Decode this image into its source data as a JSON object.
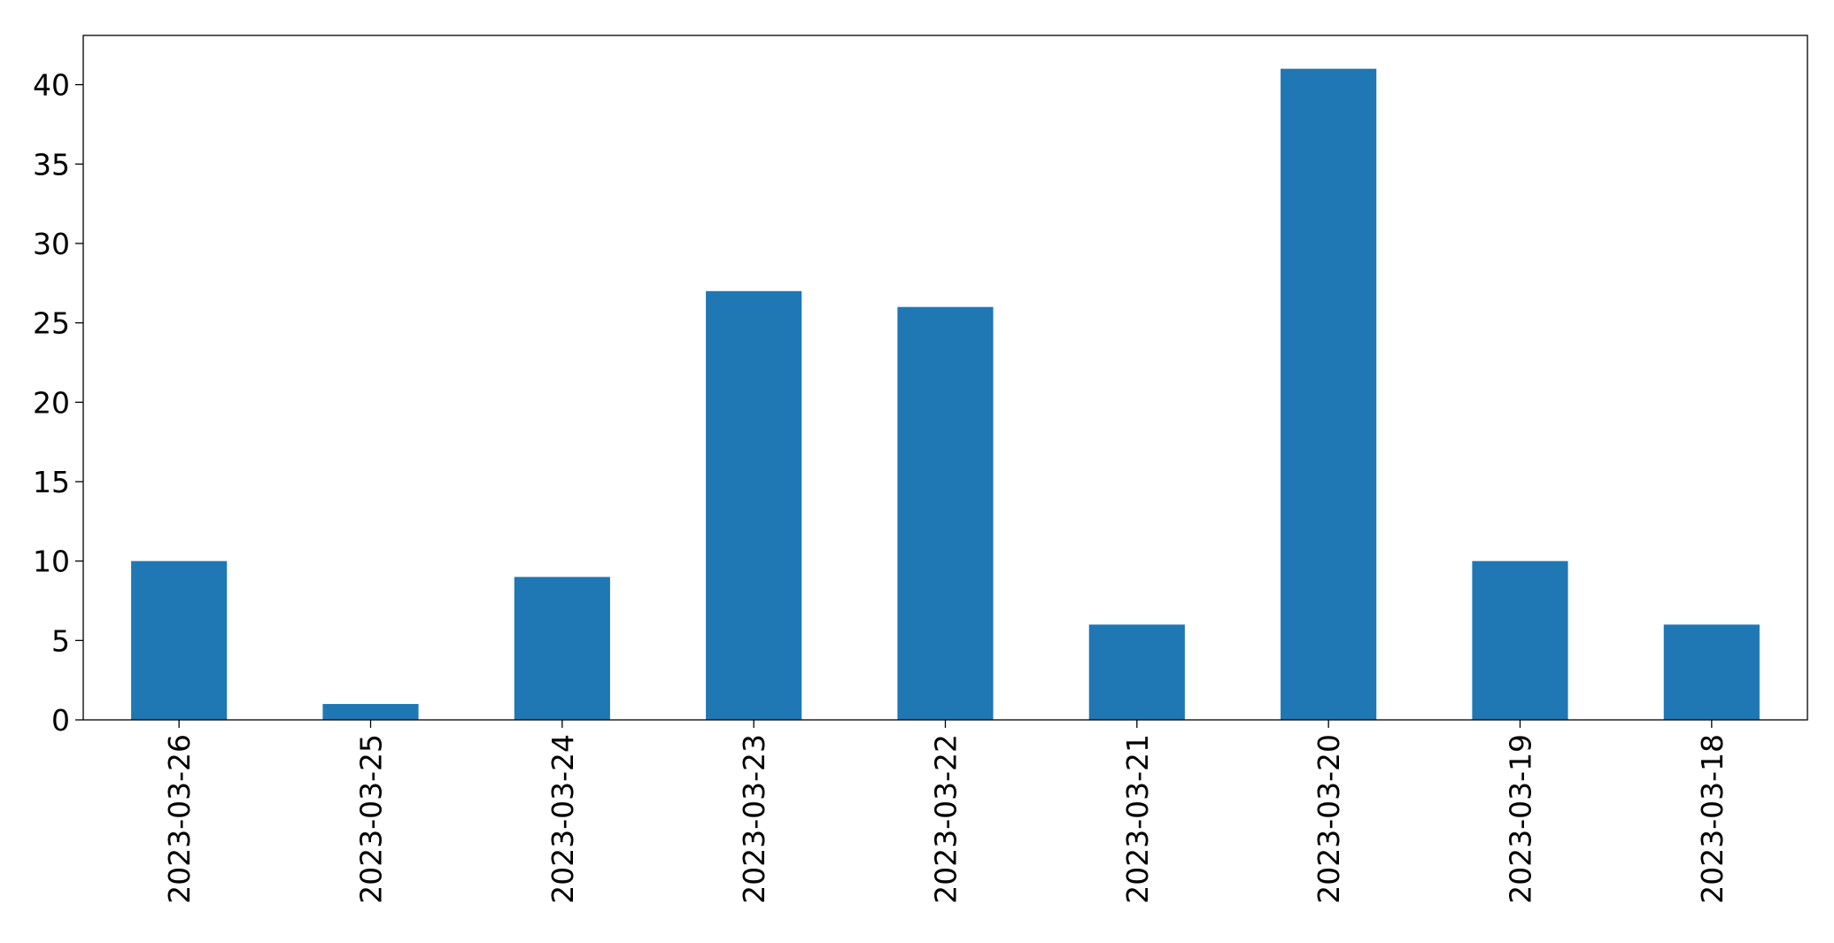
{
  "chart_data": {
    "type": "bar",
    "title": "",
    "xlabel": "",
    "ylabel": "",
    "categories": [
      "2023-03-26",
      "2023-03-25",
      "2023-03-24",
      "2023-03-23",
      "2023-03-22",
      "2023-03-21",
      "2023-03-20",
      "2023-03-19",
      "2023-03-18"
    ],
    "values": [
      10,
      1,
      9,
      27,
      26,
      6,
      41,
      10,
      6
    ],
    "ylim": [
      0,
      43.1
    ],
    "yticks": [
      0,
      5,
      10,
      15,
      20,
      25,
      30,
      35,
      40
    ],
    "grid": false,
    "legend": "none",
    "bar_color": "#1f77b4"
  }
}
